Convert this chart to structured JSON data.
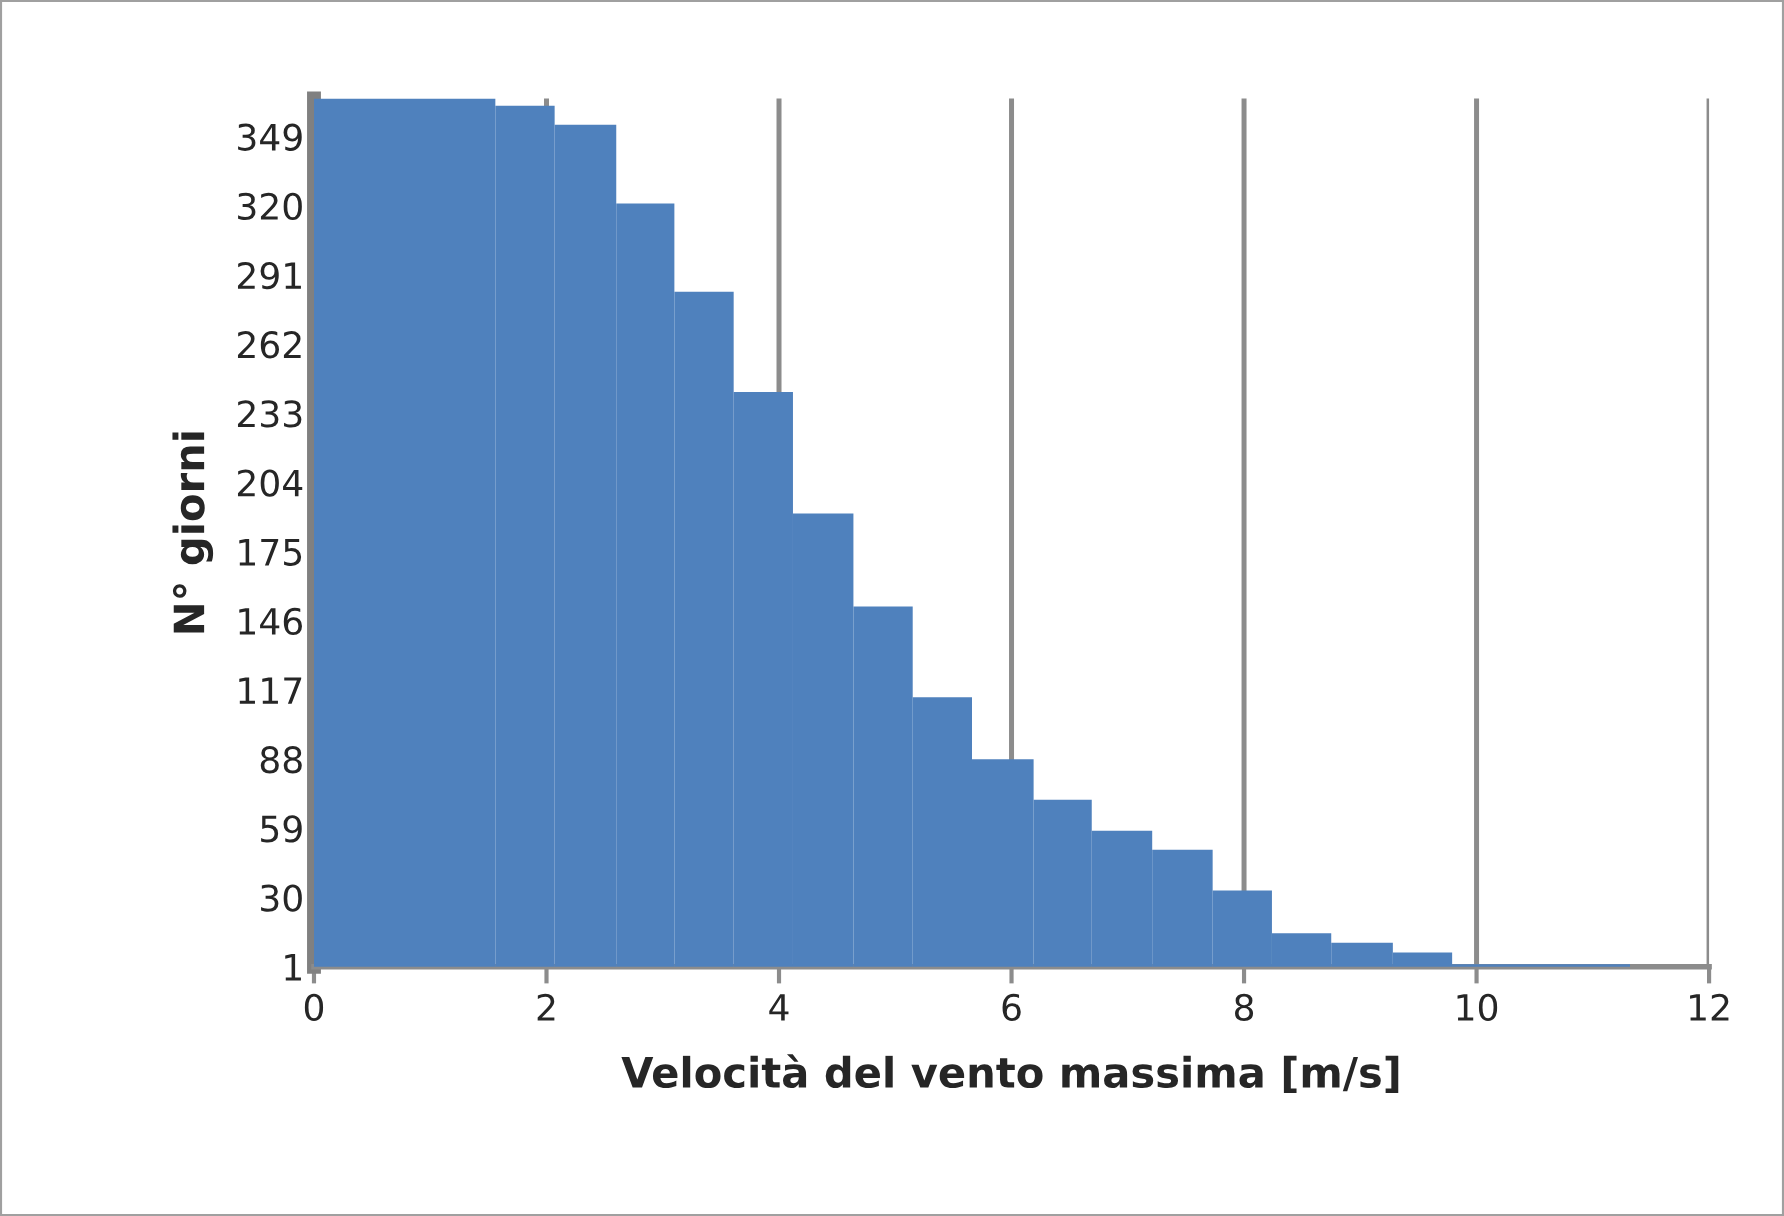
{
  "chart_data": {
    "type": "histogram",
    "xlabel": "Velocità del vento massima [m/s]",
    "ylabel": "N° giorni",
    "bins": [
      0,
      1.56,
      2.07,
      2.6,
      3.1,
      3.61,
      4.12,
      4.64,
      5.15,
      5.66,
      6.19,
      6.69,
      7.21,
      7.73,
      8.24,
      8.75,
      9.28,
      9.79,
      11.32
    ],
    "values": [
      365,
      362,
      354,
      321,
      284,
      242,
      191,
      152,
      114,
      88,
      71,
      58,
      50,
      33,
      15,
      11,
      7,
      2
    ],
    "color": "#4f81bd",
    "xlim": [
      0,
      12
    ],
    "xticks": [
      0,
      2,
      4,
      6,
      8,
      10,
      12
    ],
    "ylim": [
      1,
      365
    ],
    "yticks": [
      1,
      30,
      59,
      88,
      117,
      146,
      175,
      204,
      233,
      262,
      291,
      320,
      349
    ],
    "grid": "x"
  }
}
